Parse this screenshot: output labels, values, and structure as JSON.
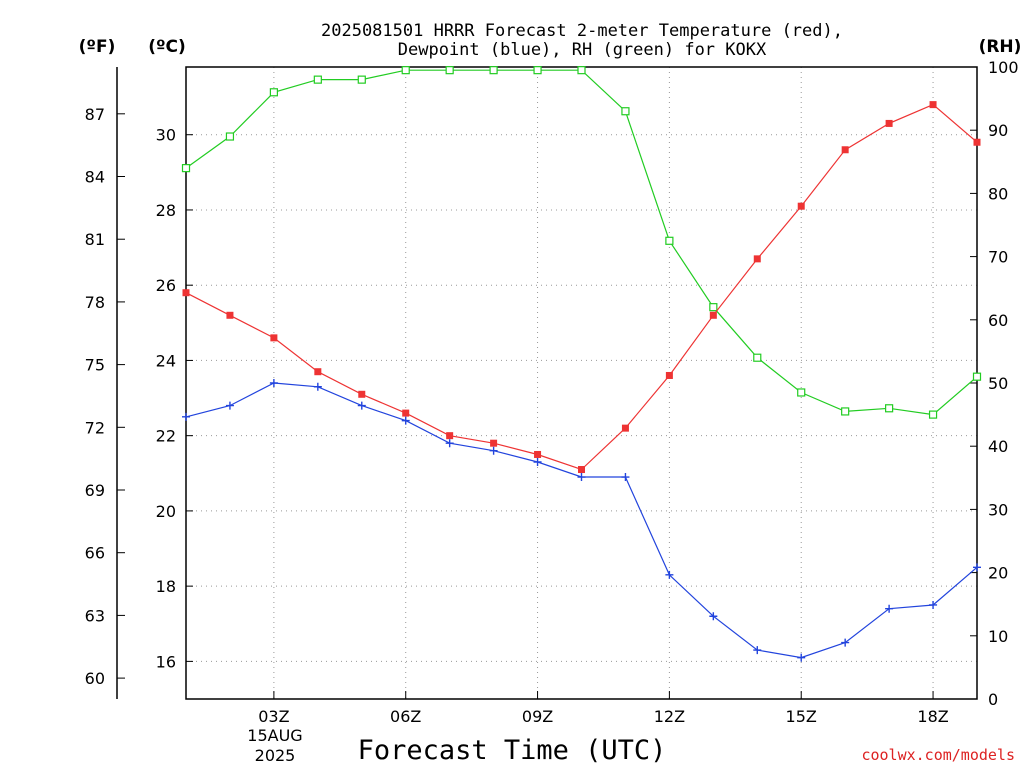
{
  "chart_data": {
    "type": "line",
    "title_line1": "2025081501 HRRR Forecast 2-meter Temperature (red),",
    "title_line2": "Dewpoint (blue), RH (green) for KOKX",
    "xlabel": "Forecast Time (UTC)",
    "date_label_line1": "15AUG",
    "date_label_line2": "2025",
    "credit": "coolwx.com/models",
    "units": {
      "fahrenheit": "(ºF)",
      "celsius": "(ºC)",
      "rh": "(RH)"
    },
    "x_ticks": [
      "03Z",
      "06Z",
      "09Z",
      "12Z",
      "15Z",
      "18Z"
    ],
    "x_tick_hours": [
      3,
      6,
      9,
      12,
      15,
      18
    ],
    "x_range_hours": [
      1,
      19
    ],
    "celsius_ticks": [
      "16",
      "18",
      "20",
      "22",
      "24",
      "26",
      "28",
      "30"
    ],
    "celsius_range": [
      15.0,
      31.8
    ],
    "fahrenheit_ticks": [
      "60",
      "63",
      "66",
      "69",
      "72",
      "75",
      "78",
      "81",
      "84",
      "87"
    ],
    "rh_ticks": [
      "0",
      "10",
      "20",
      "30",
      "40",
      "50",
      "60",
      "70",
      "80",
      "90",
      "100"
    ],
    "rh_range": [
      0,
      100
    ],
    "grid": true,
    "colors": {
      "temperature": "#ee3333",
      "dewpoint": "#2244dd",
      "rh": "#22cc22",
      "credit": "#dd2222",
      "grid": "#999999"
    },
    "hours": [
      1,
      2,
      3,
      4,
      5,
      6,
      7,
      8,
      9,
      10,
      11,
      12,
      13,
      14,
      15,
      16,
      17,
      18,
      19
    ],
    "series": [
      {
        "key": "temperature",
        "axis": "celsius",
        "marker": "filled-square",
        "values": [
          25.8,
          25.2,
          24.6,
          23.7,
          23.1,
          22.6,
          22.0,
          21.8,
          21.5,
          21.1,
          22.2,
          23.6,
          25.2,
          26.7,
          28.1,
          29.6,
          30.3,
          30.8,
          29.8
        ]
      },
      {
        "key": "dewpoint",
        "axis": "celsius",
        "marker": "plus",
        "values": [
          22.5,
          22.8,
          23.4,
          23.3,
          22.8,
          22.4,
          21.8,
          21.6,
          21.3,
          20.9,
          20.9,
          18.3,
          17.2,
          16.3,
          16.1,
          16.5,
          17.4,
          17.5,
          18.5
        ]
      },
      {
        "key": "rh",
        "axis": "rh",
        "marker": "open-square",
        "values": [
          84,
          89,
          96,
          98,
          98,
          99.5,
          99.5,
          99.5,
          99.5,
          99.5,
          93,
          72.5,
          62,
          54,
          48.5,
          45.5,
          46,
          45,
          51
        ]
      }
    ]
  }
}
